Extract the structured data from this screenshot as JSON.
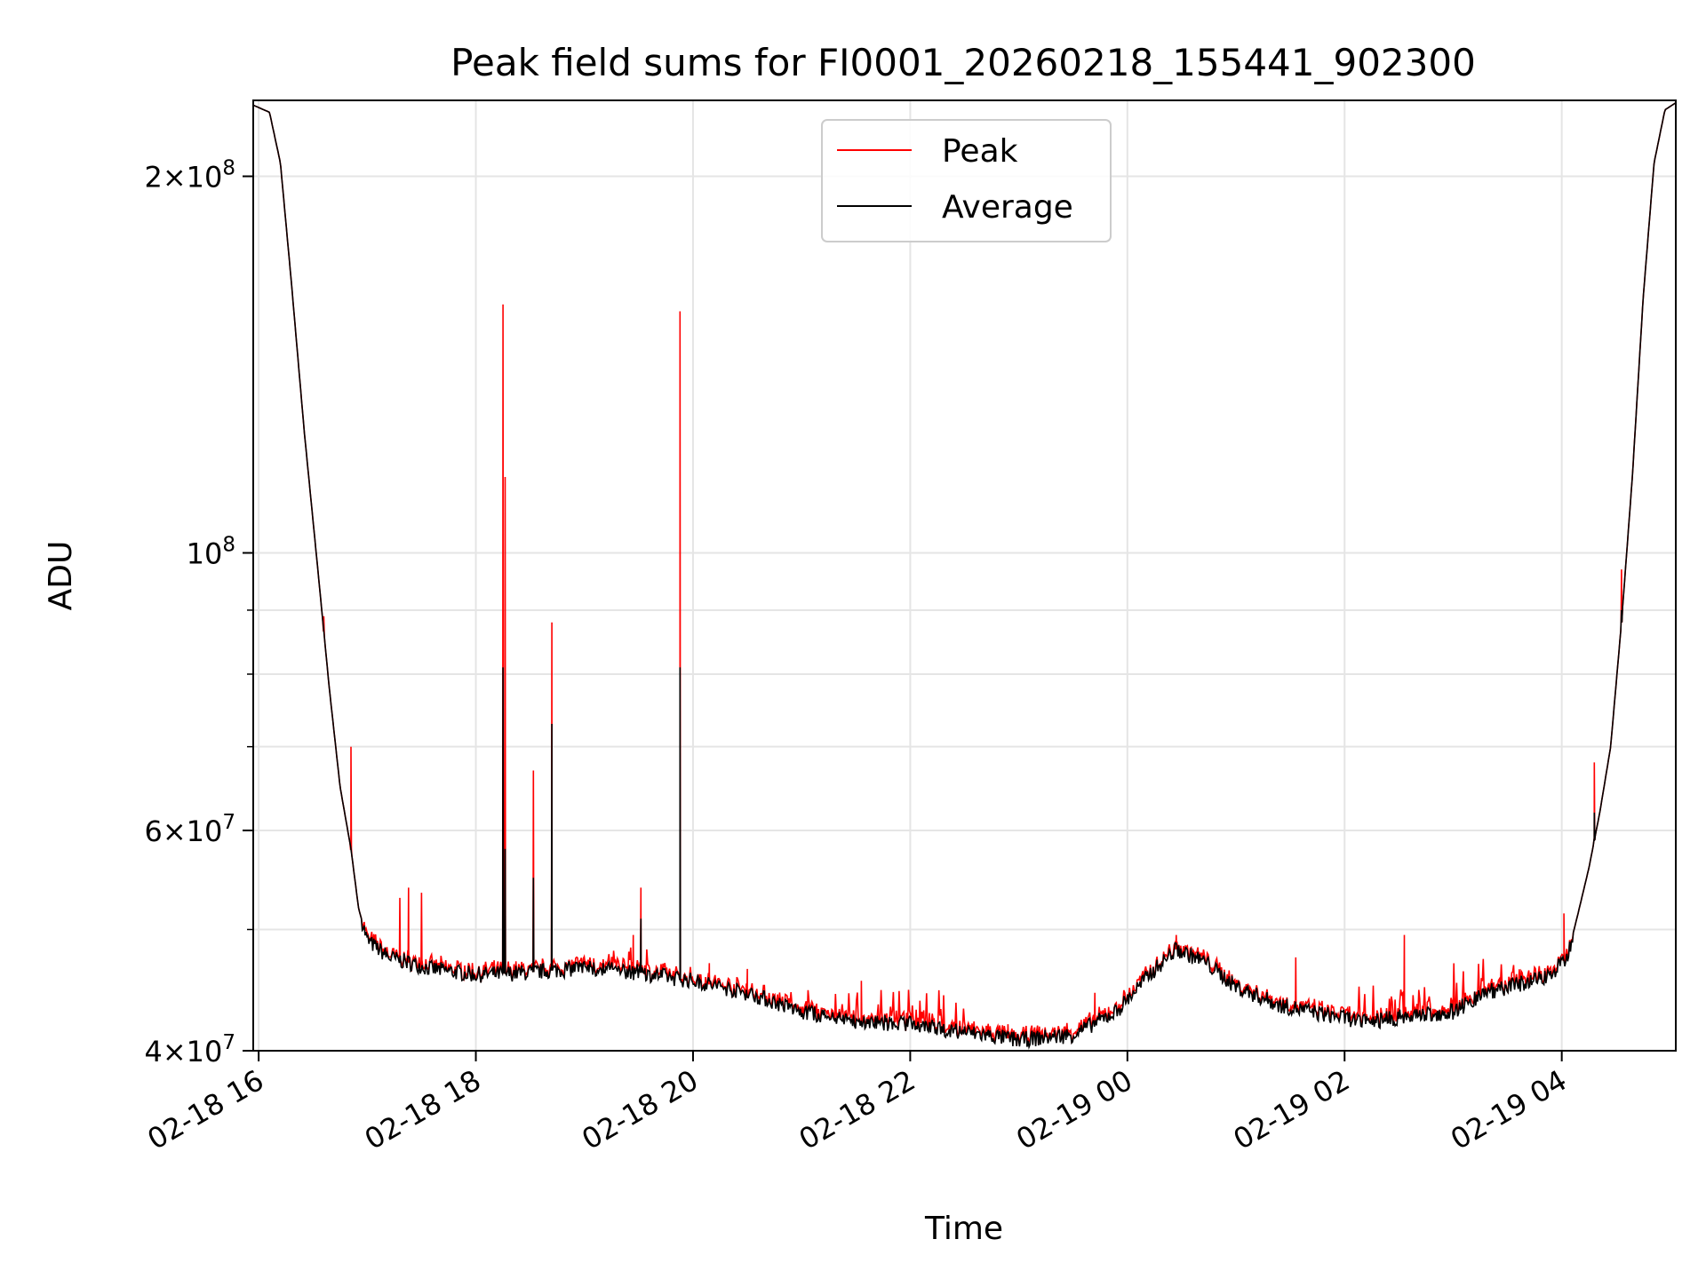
{
  "chart_data": {
    "type": "line",
    "title": "Peak field sums for FI0001_20260218_155441_902300",
    "xlabel": "Time",
    "ylabel": "ADU",
    "yscale": "log",
    "ylim": [
      40000000,
      230000000
    ],
    "xlim_hours": [
      15.95,
      29.05
    ],
    "grid": true,
    "legend_position": "top-center",
    "x_ticks": [
      {
        "hour": 16,
        "label": "02-18 16"
      },
      {
        "hour": 18,
        "label": "02-18 18"
      },
      {
        "hour": 20,
        "label": "02-18 20"
      },
      {
        "hour": 22,
        "label": "02-18 22"
      },
      {
        "hour": 24,
        "label": "02-19 00"
      },
      {
        "hour": 26,
        "label": "02-19 02"
      },
      {
        "hour": 28,
        "label": "02-19 04"
      }
    ],
    "y_major_ticks": [
      {
        "value": 40000000,
        "mant": "4",
        "exp": "7"
      },
      {
        "value": 60000000,
        "mant": "6",
        "exp": "7"
      },
      {
        "value": 100000000,
        "mant": "",
        "exp": "8"
      },
      {
        "value": 200000000,
        "mant": "2",
        "exp": "8"
      }
    ],
    "y_minor_ticks": [
      50000000,
      70000000,
      80000000,
      90000000
    ],
    "series": [
      {
        "name": "Peak",
        "color": "#ff0000",
        "spikes": [
          [
            16.6,
            89000000.0
          ],
          [
            16.85,
            70000000.0
          ],
          [
            17.3,
            53000000.0
          ],
          [
            17.38,
            54000000.0
          ],
          [
            17.5,
            53500000.0
          ],
          [
            18.25,
            158000000.0
          ],
          [
            18.27,
            115000000.0
          ],
          [
            18.53,
            67000000.0
          ],
          [
            18.7,
            88000000.0
          ],
          [
            19.45,
            49500000.0
          ],
          [
            19.52,
            54000000.0
          ],
          [
            19.88,
            156000000.0
          ],
          [
            20.15,
            47000000.0
          ],
          [
            20.5,
            46500000.0
          ],
          [
            21.55,
            45500000.0
          ],
          [
            22.9,
            42000000.0
          ],
          [
            23.7,
            44500000.0
          ],
          [
            24.45,
            49500000.0
          ],
          [
            25.55,
            47500000.0
          ],
          [
            26.55,
            49500000.0
          ],
          [
            28.02,
            51500000.0
          ],
          [
            28.3,
            68000000.0
          ],
          [
            28.55,
            97000000.0
          ]
        ],
        "bursts": [
          [
            18.9,
            19.6,
            47000000.0
          ],
          [
            20.9,
            22.5,
            43500000.0
          ],
          [
            26.1,
            26.8,
            44000000.0
          ],
          [
            27.0,
            27.7,
            46000000.0
          ]
        ]
      },
      {
        "name": "Average",
        "color": "#000000",
        "base_curve": [
          [
            15.95,
            228000000.0
          ],
          [
            16.1,
            225000000.0
          ],
          [
            16.2,
            205000000.0
          ],
          [
            16.3,
            165000000.0
          ],
          [
            16.42,
            125000000.0
          ],
          [
            16.55,
            96000000.0
          ],
          [
            16.65,
            78000000.0
          ],
          [
            16.75,
            65000000.0
          ],
          [
            16.85,
            58000000.0
          ],
          [
            16.92,
            52000000.0
          ],
          [
            17.0,
            49000000.0
          ],
          [
            17.2,
            47500000.0
          ],
          [
            17.6,
            46500000.0
          ],
          [
            18.0,
            46000000.0
          ],
          [
            18.5,
            46200000.0
          ],
          [
            19.0,
            46600000.0
          ],
          [
            19.5,
            46200000.0
          ],
          [
            20.0,
            45500000.0
          ],
          [
            20.5,
            44500000.0
          ],
          [
            21.0,
            43000000.0
          ],
          [
            21.5,
            42200000.0
          ],
          [
            22.0,
            42000000.0
          ],
          [
            22.5,
            41400000.0
          ],
          [
            23.0,
            40800000.0
          ],
          [
            23.5,
            41200000.0
          ],
          [
            23.9,
            43000000.0
          ],
          [
            24.2,
            46000000.0
          ],
          [
            24.45,
            48200000.0
          ],
          [
            24.7,
            47200000.0
          ],
          [
            25.0,
            45000000.0
          ],
          [
            25.4,
            43500000.0
          ],
          [
            25.8,
            42800000.0
          ],
          [
            26.2,
            42200000.0
          ],
          [
            26.6,
            42600000.0
          ],
          [
            27.0,
            43000000.0
          ],
          [
            27.3,
            44500000.0
          ],
          [
            27.6,
            45200000.0
          ],
          [
            27.9,
            46000000.0
          ],
          [
            28.05,
            47500000.0
          ],
          [
            28.15,
            51500000.0
          ],
          [
            28.25,
            56000000.0
          ],
          [
            28.35,
            62000000.0
          ],
          [
            28.45,
            70000000.0
          ],
          [
            28.55,
            88000000.0
          ],
          [
            28.65,
            115000000.0
          ],
          [
            28.75,
            160000000.0
          ],
          [
            28.85,
            205000000.0
          ],
          [
            28.95,
            226000000.0
          ],
          [
            29.05,
            229000000.0
          ]
        ],
        "spikes": [
          [
            18.25,
            81000000.0
          ],
          [
            18.27,
            58000000.0
          ],
          [
            18.53,
            55000000.0
          ],
          [
            18.7,
            73000000.0
          ],
          [
            19.52,
            51000000.0
          ],
          [
            19.88,
            81000000.0
          ],
          [
            28.3,
            62000000.0
          ],
          [
            28.55,
            90000000.0
          ]
        ]
      }
    ]
  }
}
